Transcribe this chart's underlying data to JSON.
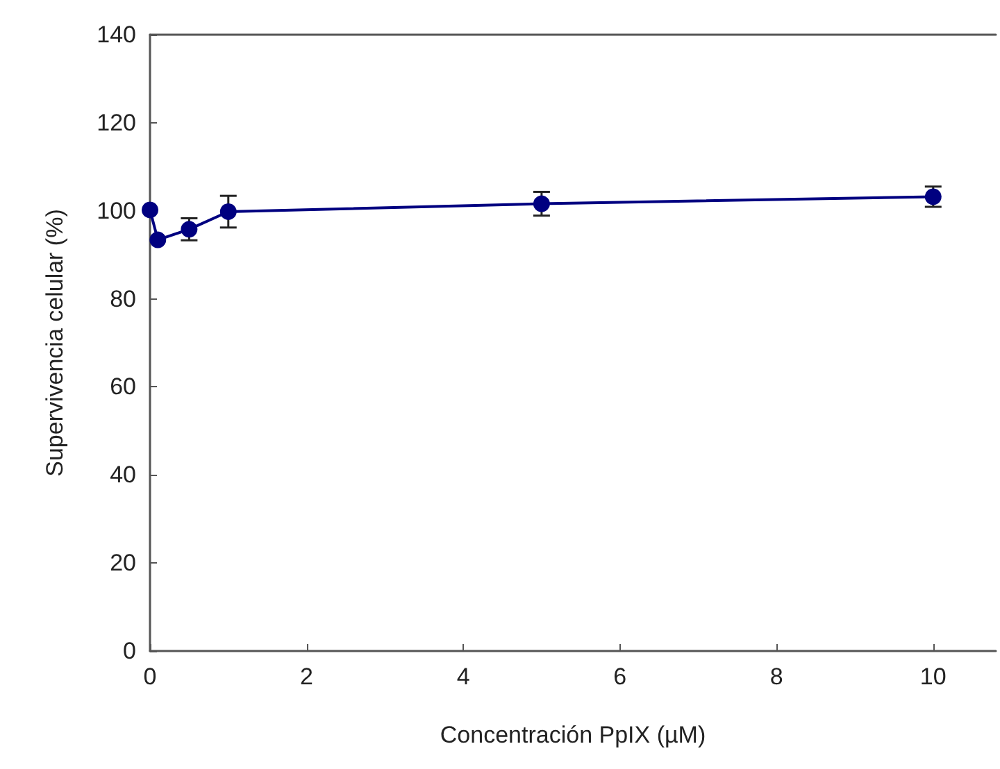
{
  "chart_data": {
    "type": "line",
    "xlabel": "Concentración PpIX (µM)",
    "ylabel": "Supervivencia celular (%)",
    "x": [
      0,
      0.1,
      0.5,
      1,
      5,
      10
    ],
    "series": [
      {
        "color": "#000080",
        "values": [
          100.2,
          93.4,
          95.8,
          99.8,
          101.6,
          103.2
        ],
        "errors": [
          null,
          null,
          2.5,
          3.6,
          2.7,
          2.3
        ]
      }
    ],
    "xlim": [
      0,
      10.8
    ],
    "xticks": [
      0,
      2,
      4,
      6,
      8,
      10
    ],
    "ylim": [
      0,
      140
    ],
    "yticks": [
      0,
      20,
      40,
      60,
      80,
      100,
      120,
      140
    ],
    "grid": false,
    "marker": "circle",
    "line_style": "solid"
  }
}
